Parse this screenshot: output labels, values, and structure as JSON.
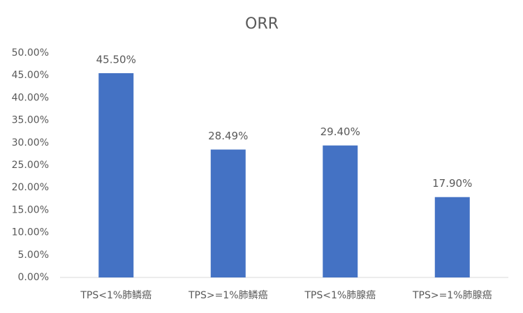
{
  "chart_data": {
    "type": "bar",
    "title": "ORR",
    "categories": [
      "TPS<1%肺鳞癌",
      "TPS>=1%肺鳞癌",
      "TPS<1%肺腺癌",
      "TPS>=1%肺腺癌"
    ],
    "values": [
      45.5,
      28.49,
      29.4,
      17.9
    ],
    "value_labels": [
      "45.50%",
      "28.49%",
      "29.40%",
      "17.90%"
    ],
    "color": "#4472c4",
    "ylim": [
      0,
      50
    ],
    "yticks": [
      {
        "value": 0,
        "label": "0.00%"
      },
      {
        "value": 5,
        "label": "5.00%"
      },
      {
        "value": 10,
        "label": "10.00%"
      },
      {
        "value": 15,
        "label": "15.00%"
      },
      {
        "value": 20,
        "label": "20.00%"
      },
      {
        "value": 25,
        "label": "25.00%"
      },
      {
        "value": 30,
        "label": "30.00%"
      },
      {
        "value": 35,
        "label": "35.00%"
      },
      {
        "value": 40,
        "label": "40.00%"
      },
      {
        "value": 45,
        "label": "45.00%"
      },
      {
        "value": 50,
        "label": "50.00%"
      }
    ],
    "grid": false
  }
}
